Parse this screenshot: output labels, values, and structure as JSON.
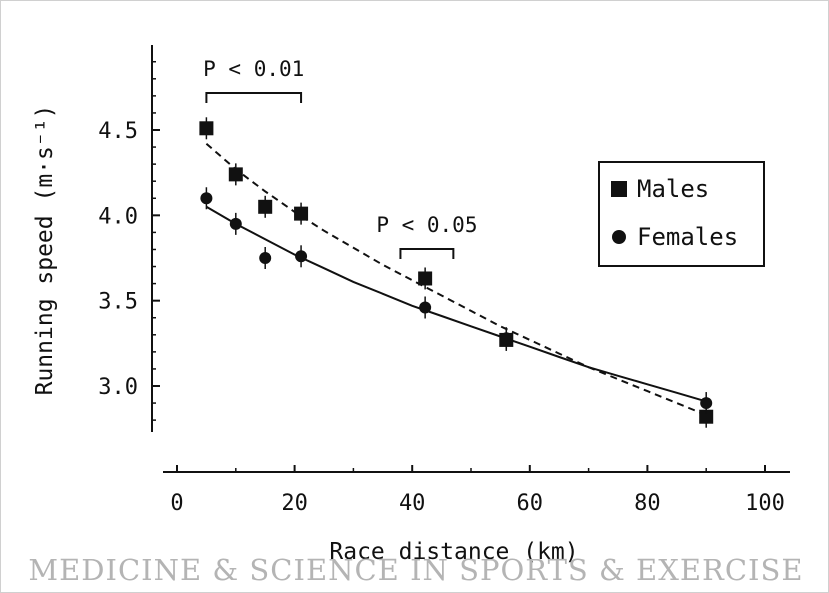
{
  "chart_data": {
    "type": "scatter",
    "xlabel": "Race distance (km)",
    "ylabel": "Running speed (m·s⁻¹)",
    "xlim": [
      0,
      100
    ],
    "ylim": [
      2.8,
      4.95
    ],
    "xticks": [
      "0",
      "20",
      "40",
      "60",
      "80",
      "100"
    ],
    "yticks": [
      "3.0",
      "3.5",
      "4.0",
      "4.5"
    ],
    "grid": false,
    "legend_position": "right",
    "series": [
      {
        "name": "Males",
        "marker": "square",
        "line_style": "dashed",
        "points": [
          {
            "x": 5,
            "y": 4.51
          },
          {
            "x": 10,
            "y": 4.24
          },
          {
            "x": 15,
            "y": 4.05
          },
          {
            "x": 21.1,
            "y": 4.01
          },
          {
            "x": 42.2,
            "y": 3.63
          },
          {
            "x": 56,
            "y": 3.27
          },
          {
            "x": 90,
            "y": 2.82
          }
        ],
        "fit": [
          {
            "x": 5,
            "y": 4.42
          },
          {
            "x": 10,
            "y": 4.27
          },
          {
            "x": 15,
            "y": 4.14
          },
          {
            "x": 20,
            "y": 4.02
          },
          {
            "x": 25,
            "y": 3.91
          },
          {
            "x": 30,
            "y": 3.81
          },
          {
            "x": 35,
            "y": 3.71
          },
          {
            "x": 40,
            "y": 3.62
          },
          {
            "x": 45,
            "y": 3.53
          },
          {
            "x": 50,
            "y": 3.44
          },
          {
            "x": 55,
            "y": 3.35
          },
          {
            "x": 60,
            "y": 3.27
          },
          {
            "x": 65,
            "y": 3.19
          },
          {
            "x": 70,
            "y": 3.11
          },
          {
            "x": 75,
            "y": 3.04
          },
          {
            "x": 80,
            "y": 2.97
          },
          {
            "x": 85,
            "y": 2.9
          },
          {
            "x": 90,
            "y": 2.83
          }
        ]
      },
      {
        "name": "Females",
        "marker": "circle",
        "line_style": "solid",
        "points": [
          {
            "x": 5,
            "y": 4.1
          },
          {
            "x": 10,
            "y": 3.95
          },
          {
            "x": 15,
            "y": 3.75
          },
          {
            "x": 21.1,
            "y": 3.76
          },
          {
            "x": 42.2,
            "y": 3.46
          },
          {
            "x": 56,
            "y": 3.28
          },
          {
            "x": 90,
            "y": 2.9
          }
        ],
        "fit": [
          {
            "x": 5,
            "y": 4.05
          },
          {
            "x": 10,
            "y": 3.95
          },
          {
            "x": 15,
            "y": 3.86
          },
          {
            "x": 20,
            "y": 3.77
          },
          {
            "x": 25,
            "y": 3.69
          },
          {
            "x": 30,
            "y": 3.61
          },
          {
            "x": 35,
            "y": 3.54
          },
          {
            "x": 40,
            "y": 3.47
          },
          {
            "x": 45,
            "y": 3.41
          },
          {
            "x": 50,
            "y": 3.35
          },
          {
            "x": 55,
            "y": 3.29
          },
          {
            "x": 60,
            "y": 3.23
          },
          {
            "x": 65,
            "y": 3.17
          },
          {
            "x": 70,
            "y": 3.11
          },
          {
            "x": 75,
            "y": 3.06
          },
          {
            "x": 80,
            "y": 3.01
          },
          {
            "x": 85,
            "y": 2.96
          },
          {
            "x": 90,
            "y": 2.91
          }
        ]
      }
    ],
    "annotations": [
      {
        "text": "P < 0.01",
        "x_from": 5,
        "x_to": 21.1
      },
      {
        "text": "P < 0.05",
        "x_from": 38,
        "x_to": 47
      }
    ]
  },
  "watermark": "MEDICINE & SCIENCE IN SPORTS & EXERCISE"
}
